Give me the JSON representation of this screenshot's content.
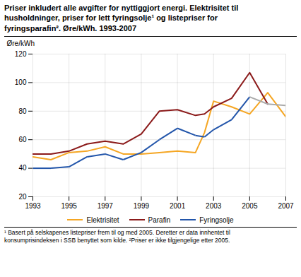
{
  "chart_data": {
    "type": "line",
    "title": "Priser inkludert alle avgifter for nyttiggjort energi. Elektrisitet til\nhusholdninger, priser for lett fyringsolje¹ og listepriser for\nfyringsparafin². Øre/kWh. 1993-2007",
    "ylabel": "Øre/kWh",
    "footnotes": [
      "¹ Basert på selskapenes listepriser frem til og med 2005. Deretter er data innhentet til",
      "konsumprisindeksen i SSB benyttet som kilde. ²Priser er ikke tilgjengelige etter 2005."
    ],
    "series": [
      {
        "name": "Elektrisitet",
        "color": "#f5a623",
        "x": [
          1993,
          1994,
          1995,
          1996,
          1997,
          1998,
          1999,
          2000,
          2001,
          2002,
          2002.5,
          2003,
          2004,
          2005,
          2006,
          2007
        ],
        "values": [
          48,
          46,
          51,
          52,
          55,
          50,
          50,
          51,
          52,
          51,
          65,
          87,
          83,
          78,
          93,
          76
        ]
      },
      {
        "name": "Parafin",
        "color": "#8b1a1a",
        "x": [
          1993,
          1994,
          1995,
          1996,
          1997,
          1998,
          1999,
          2000,
          2001,
          2002,
          2002.5,
          2003,
          2004,
          2005,
          2006
        ],
        "values": [
          50,
          50,
          52,
          57,
          59,
          57,
          64,
          80,
          81,
          77,
          78,
          83,
          89,
          107,
          85
        ]
      },
      {
        "name": "Fyringsolje",
        "color": "#2255aa",
        "x": [
          1993,
          1994,
          1995,
          1996,
          1997,
          1998,
          1999,
          2000,
          2001,
          2002,
          2002.5,
          2003,
          2004,
          2005,
          2006,
          2007
        ],
        "values": [
          40,
          40,
          41,
          48,
          50,
          46,
          51,
          60,
          68,
          63,
          62,
          67,
          74,
          90,
          85,
          84
        ],
        "colors": [
          "#2255aa",
          "#2255aa",
          "#2255aa",
          "#2255aa",
          "#2255aa",
          "#2255aa",
          "#2255aa",
          "#2255aa",
          "#2255aa",
          "#2255aa",
          "#2255aa",
          "#2255aa",
          "#2255aa",
          "#2255aa",
          "#aaaaaa",
          "#aaaaaa"
        ]
      }
    ],
    "xlim": [
      1993,
      2007
    ],
    "xticks": [
      1993,
      1995,
      1997,
      1999,
      2001,
      2003,
      2005,
      2007
    ],
    "ylim": [
      20,
      120
    ],
    "yticks": [
      20,
      40,
      60,
      80,
      100,
      120
    ],
    "grid": true,
    "legend": "bottom"
  }
}
